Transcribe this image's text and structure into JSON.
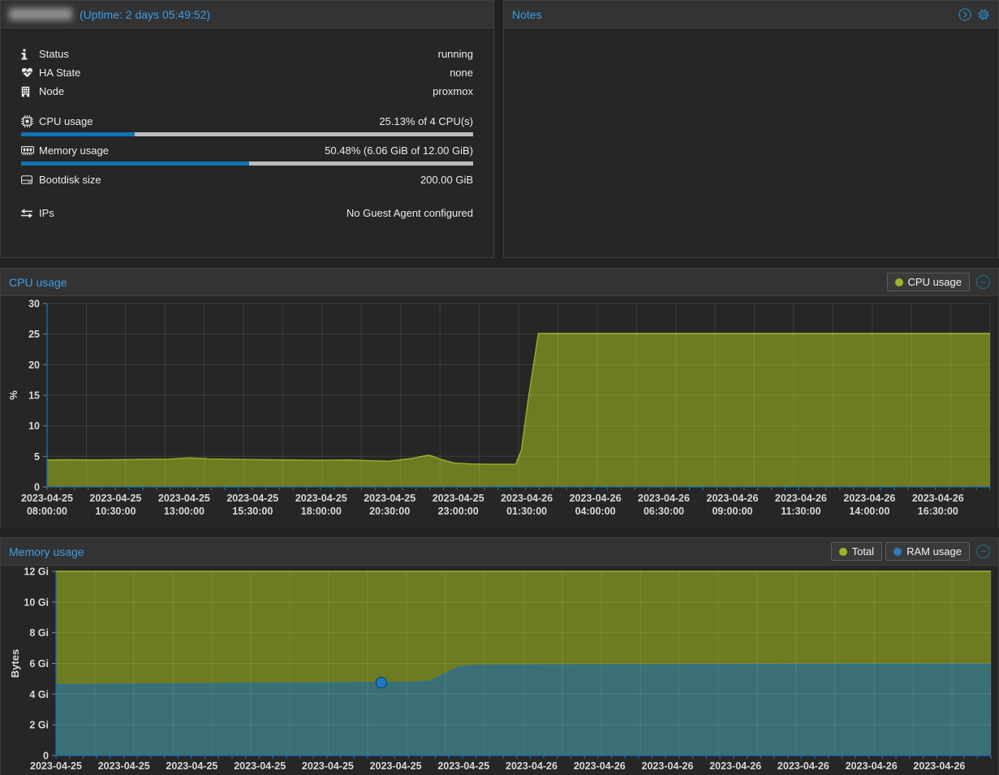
{
  "status_panel": {
    "uptime_label": "(Uptime: 2 days 05:49:52)",
    "rows": [
      {
        "icon": "info-icon",
        "label": "Status",
        "value": "running"
      },
      {
        "icon": "heartbeat-icon",
        "label": "HA State",
        "value": "none"
      },
      {
        "icon": "building-icon",
        "label": "Node",
        "value": "proxmox"
      },
      {
        "icon": "cpu-icon",
        "label": "CPU usage",
        "value": "25.13% of 4 CPU(s)",
        "progress": 25.13
      },
      {
        "icon": "memory-icon",
        "label": "Memory usage",
        "value": "50.48% (6.06 GiB of 12.00 GiB)",
        "progress": 50.48
      },
      {
        "icon": "hdd-icon",
        "label": "Bootdisk size",
        "value": "200.00 GiB"
      },
      {
        "icon": "exchange-icon",
        "label": "IPs",
        "value": "No Guest Agent configured"
      }
    ]
  },
  "notes_panel": {
    "title": "Notes"
  },
  "cpu_panel": {
    "title": "CPU usage",
    "legend": [
      {
        "label": "CPU usage",
        "color": "#9db32b"
      }
    ]
  },
  "memory_panel": {
    "title": "Memory usage",
    "legend": [
      {
        "label": "Total",
        "color": "#9db32b"
      },
      {
        "label": "RAM usage",
        "color": "#2e7cbf"
      }
    ]
  },
  "colors": {
    "accent_blue": "#3d9ee8",
    "axis_blue": "#1a70aa",
    "grid": "rgba(255,255,255,0.11)",
    "progress_fill": "#1173b4",
    "progress_track": "#bebebe",
    "cpu_fill": "#6e7b20",
    "cpu_stroke": "#97ad25",
    "ram_fill": "#3a6f75",
    "ram_stroke": "#2b7199",
    "marker_fill": "#1f79c2",
    "marker_stroke": "#0f4d7d"
  },
  "chart_data": [
    {
      "type": "area",
      "title": "CPU usage",
      "ylabel": "%",
      "ylim": [
        0,
        30
      ],
      "ytick_values": [
        0,
        5,
        10,
        15,
        20,
        25,
        30
      ],
      "ytick_labels": [
        "0",
        "5",
        "10",
        "15",
        "20",
        "25",
        "30"
      ],
      "x_labels": [
        [
          "2023-04-25",
          "08:00:00"
        ],
        [
          "2023-04-25",
          "10:30:00"
        ],
        [
          "2023-04-25",
          "13:00:00"
        ],
        [
          "2023-04-25",
          "15:30:00"
        ],
        [
          "2023-04-25",
          "18:00:00"
        ],
        [
          "2023-04-25",
          "20:30:00"
        ],
        [
          "2023-04-25",
          "23:00:00"
        ],
        [
          "2023-04-26",
          "01:30:00"
        ],
        [
          "2023-04-26",
          "04:00:00"
        ],
        [
          "2023-04-26",
          "06:30:00"
        ],
        [
          "2023-04-26",
          "09:00:00"
        ],
        [
          "2023-04-26",
          "11:30:00"
        ],
        [
          "2023-04-26",
          "14:00:00"
        ],
        [
          "2023-04-26",
          "16:30:00"
        ]
      ],
      "legend_position": "top-right",
      "grid": true,
      "series": [
        {
          "name": "CPU usage",
          "fill": "#6e7b20",
          "stroke": "#97ad25",
          "points": [
            [
              0.0,
              4.4
            ],
            [
              0.02,
              4.45
            ],
            [
              0.05,
              4.4
            ],
            [
              0.08,
              4.45
            ],
            [
              0.1,
              4.5
            ],
            [
              0.13,
              4.55
            ],
            [
              0.151,
              4.75
            ],
            [
              0.17,
              4.6
            ],
            [
              0.2,
              4.5
            ],
            [
              0.23,
              4.45
            ],
            [
              0.26,
              4.4
            ],
            [
              0.29,
              4.35
            ],
            [
              0.32,
              4.4
            ],
            [
              0.34,
              4.3
            ],
            [
              0.362,
              4.2
            ],
            [
              0.385,
              4.6
            ],
            [
              0.405,
              5.2
            ],
            [
              0.42,
              4.4
            ],
            [
              0.432,
              3.9
            ],
            [
              0.45,
              3.75
            ],
            [
              0.47,
              3.7
            ],
            [
              0.497,
              3.7
            ],
            [
              0.503,
              6.0
            ],
            [
              0.51,
              14.0
            ],
            [
              0.521,
              25.1
            ],
            [
              0.6,
              25.1
            ],
            [
              0.7,
              25.1
            ],
            [
              0.8,
              25.1
            ],
            [
              0.9,
              25.1
            ],
            [
              1.0,
              25.1
            ]
          ]
        }
      ]
    },
    {
      "type": "area",
      "title": "Memory usage",
      "ylabel": "Bytes",
      "ylim": [
        0,
        12
      ],
      "ytick_values": [
        0,
        2,
        4,
        6,
        8,
        10,
        12
      ],
      "ytick_labels": [
        "0",
        "2 Gi",
        "4 Gi",
        "6 Gi",
        "8 Gi",
        "10 Gi",
        "12 Gi"
      ],
      "x_labels": [
        [
          "2023-04-25"
        ],
        [
          "2023-04-25"
        ],
        [
          "2023-04-25"
        ],
        [
          "2023-04-25"
        ],
        [
          "2023-04-25"
        ],
        [
          "2023-04-25"
        ],
        [
          "2023-04-25"
        ],
        [
          "2023-04-26"
        ],
        [
          "2023-04-26"
        ],
        [
          "2023-04-26"
        ],
        [
          "2023-04-26"
        ],
        [
          "2023-04-26"
        ],
        [
          "2023-04-26"
        ],
        [
          "2023-04-26"
        ]
      ],
      "legend_position": "top-right",
      "grid": true,
      "series": [
        {
          "name": "Total",
          "fill": "#6e7b20",
          "stroke": "#97ad25",
          "points": [
            [
              0.0,
              12.0
            ],
            [
              1.0,
              12.0
            ]
          ]
        },
        {
          "name": "RAM usage",
          "fill": "#3a6f75",
          "stroke": "#2b7199",
          "points": [
            [
              0.0,
              4.62
            ],
            [
              0.05,
              4.63
            ],
            [
              0.1,
              4.65
            ],
            [
              0.15,
              4.67
            ],
            [
              0.2,
              4.69
            ],
            [
              0.25,
              4.71
            ],
            [
              0.3,
              4.73
            ],
            [
              0.348,
              4.75
            ],
            [
              0.38,
              4.76
            ],
            [
              0.4,
              4.85
            ],
            [
              0.415,
              5.3
            ],
            [
              0.43,
              5.75
            ],
            [
              0.445,
              5.85
            ],
            [
              0.47,
              5.88
            ],
            [
              0.55,
              5.9
            ],
            [
              0.65,
              5.91
            ],
            [
              0.75,
              5.92
            ],
            [
              0.85,
              5.94
            ],
            [
              1.0,
              5.95
            ]
          ]
        }
      ],
      "marker": {
        "series": "RAM usage",
        "x": 0.348,
        "value": 4.75,
        "color": "#1f79c2"
      }
    }
  ]
}
